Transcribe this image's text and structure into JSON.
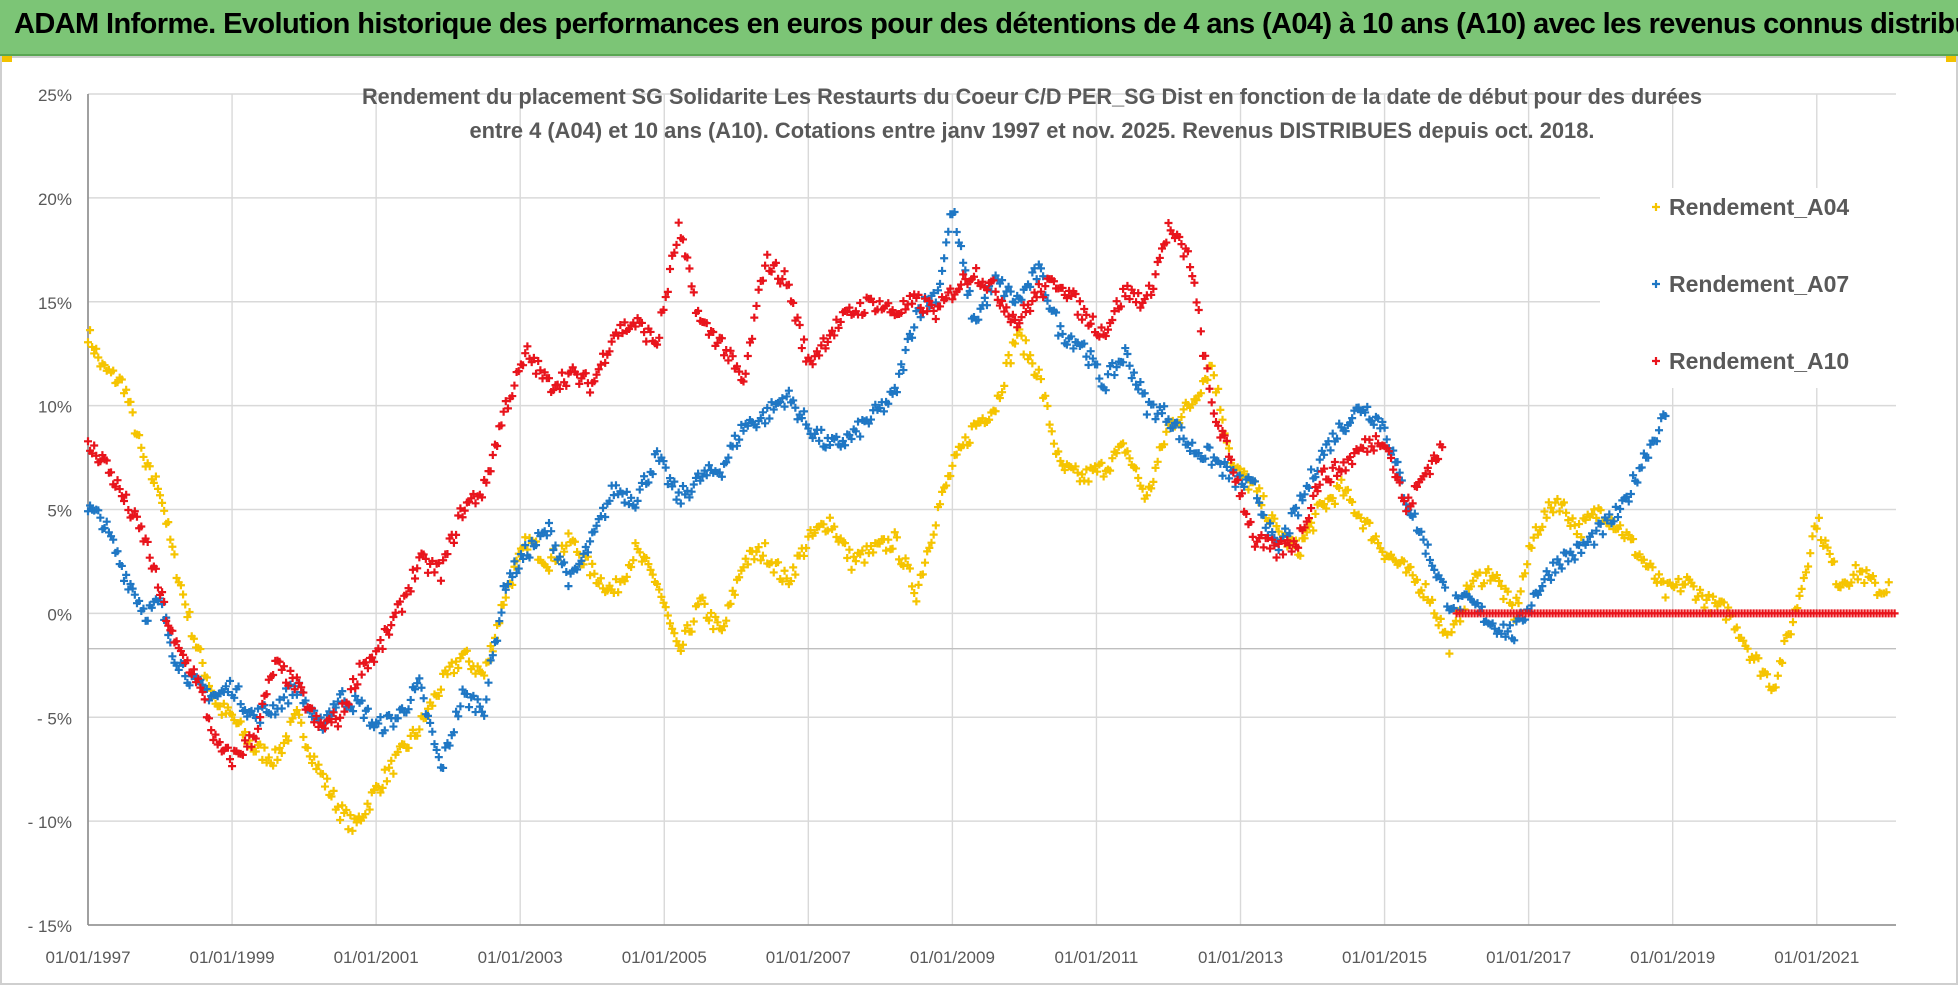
{
  "banner": {
    "title": "ADAM Informe. Evolution historique des performances en euros pour des détentions de 4 ans (A04) à 10 ans (A10) avec les revenus connus distribués"
  },
  "colors": {
    "banner_bg": "#7cc576",
    "a04": "#f5c400",
    "a07": "#1f77c4",
    "a10": "#e8141c",
    "grid": "#d9d9d9"
  },
  "chart_data": {
    "type": "scatter",
    "title_line1": "Rendement du placement SG Solidarite Les Restaurts du Coeur C/D PER_SG Dist en fonction de la date de début pour des durées",
    "title_line2": "entre 4 (A04) et 10 ans (A10).  Cotations entre janv 1997 et nov. 2025. Revenus DISTRIBUES depuis oct. 2018.",
    "xlabel": "",
    "ylabel": "",
    "xlim": [
      1997.0,
      2022.1
    ],
    "ylim": [
      -15,
      25
    ],
    "y_ticks": [
      25,
      20,
      15,
      10,
      5,
      0,
      -5,
      -10,
      -15
    ],
    "y_tick_labels": [
      "25%",
      "20%",
      "15%",
      "10%",
      "5%",
      "0%",
      "- 5%",
      "- 10%",
      "- 15%"
    ],
    "x_ticks": [
      1997,
      1999,
      2001,
      2003,
      2005,
      2007,
      2009,
      2011,
      2013,
      2015,
      2017,
      2019,
      2021
    ],
    "x_tick_labels": [
      "01/01/1997",
      "01/01/1999",
      "01/01/2001",
      "01/01/2003",
      "01/01/2005",
      "01/01/2007",
      "01/01/2009",
      "01/01/2011",
      "01/01/2013",
      "01/01/2015",
      "01/01/2017",
      "01/01/2019",
      "01/01/2021"
    ],
    "grid": true,
    "legend_position": "top-right",
    "series": [
      {
        "name": "Rendement_A04",
        "key": "a04",
        "x": [
          1997.0,
          1997.2,
          1997.5,
          1997.8,
          1998.0,
          1998.2,
          1998.5,
          1998.8,
          1999.0,
          1999.3,
          1999.6,
          1999.9,
          2000.2,
          2000.5,
          2000.7,
          2001.0,
          2001.3,
          2001.6,
          2001.9,
          2002.2,
          2002.5,
          2002.8,
          2003.1,
          2003.4,
          2003.7,
          2004.0,
          2004.3,
          2004.6,
          2004.9,
          2005.2,
          2005.5,
          2005.8,
          2006.1,
          2006.4,
          2006.7,
          2007.0,
          2007.3,
          2007.6,
          2007.9,
          2008.2,
          2008.5,
          2008.8,
          2009.0,
          2009.3,
          2009.6,
          2009.9,
          2010.2,
          2010.5,
          2010.8,
          2011.1,
          2011.4,
          2011.7,
          2012.0,
          2012.3,
          2012.6,
          2012.9,
          2013.2,
          2013.5,
          2013.8,
          2014.1,
          2014.4,
          2014.7,
          2015.0,
          2015.3,
          2015.6,
          2015.9,
          2016.2,
          2016.5,
          2016.8,
          2017.1,
          2017.4,
          2017.7,
          2018.0,
          2018.3,
          2018.6,
          2018.9,
          2019.2,
          2019.5,
          2019.8,
          2020.1,
          2020.4,
          2020.7,
          2021.0,
          2021.3,
          2021.6,
          2021.9,
          2022.0
        ],
        "y": [
          13.5,
          11.8,
          11.0,
          7.0,
          6.0,
          2.5,
          -1.5,
          -4.5,
          -5.0,
          -6.5,
          -7.0,
          -5.0,
          -7.5,
          -9.5,
          -10.3,
          -8.5,
          -7.0,
          -5.5,
          -3.5,
          -2.0,
          -3.0,
          1.0,
          3.5,
          2.5,
          3.5,
          2.0,
          1.0,
          3.0,
          1.5,
          -2.0,
          0.5,
          -1.0,
          2.5,
          3.0,
          1.5,
          3.5,
          4.5,
          2.5,
          3.0,
          3.5,
          1.0,
          5.0,
          7.0,
          9.0,
          10.0,
          13.5,
          11.5,
          7.0,
          6.5,
          7.0,
          8.0,
          5.5,
          9.0,
          10.0,
          12.0,
          7.0,
          6.0,
          4.0,
          3.0,
          5.0,
          6.0,
          4.5,
          3.0,
          2.0,
          1.0,
          -1.5,
          1.5,
          2.0,
          0.0,
          4.0,
          5.5,
          4.0,
          5.0,
          4.0,
          2.5,
          1.0,
          1.5,
          0.5,
          0.0,
          -2.0,
          -3.5,
          0.0,
          4.5,
          1.5,
          2.0,
          1.0,
          1.5
        ]
      },
      {
        "name": "Rendement_A07",
        "key": "a07",
        "x": [
          1997.0,
          1997.2,
          1997.5,
          1997.8,
          1998.0,
          1998.2,
          1998.5,
          1998.8,
          1999.0,
          1999.3,
          1999.6,
          1999.9,
          2000.2,
          2000.5,
          2000.8,
          2001.0,
          2001.3,
          2001.6,
          2001.9,
          2002.2,
          2002.5,
          2002.8,
          2003.1,
          2003.4,
          2003.7,
          2004.0,
          2004.3,
          2004.6,
          2004.9,
          2005.2,
          2005.5,
          2005.8,
          2006.1,
          2006.4,
          2006.7,
          2007.0,
          2007.3,
          2007.6,
          2007.9,
          2008.2,
          2008.5,
          2008.8,
          2009.0,
          2009.3,
          2009.6,
          2009.9,
          2010.2,
          2010.5,
          2010.8,
          2011.1,
          2011.4,
          2011.7,
          2012.0,
          2012.3,
          2012.6,
          2012.9,
          2013.2,
          2013.5,
          2013.8,
          2014.1,
          2014.4,
          2014.7,
          2015.0,
          2015.3,
          2015.6,
          2015.9,
          2016.2,
          2016.5,
          2016.8,
          2017.1,
          2017.4,
          2017.7,
          2018.0,
          2018.3,
          2018.6,
          2018.9
        ],
        "y": [
          5.0,
          4.5,
          2.0,
          0.0,
          0.5,
          -2.0,
          -3.5,
          -4.0,
          -3.5,
          -5.0,
          -4.5,
          -3.5,
          -5.5,
          -4.0,
          -4.5,
          -5.5,
          -5.0,
          -3.5,
          -7.5,
          -4.0,
          -4.5,
          1.5,
          3.0,
          4.0,
          1.5,
          3.5,
          6.0,
          5.5,
          7.5,
          5.5,
          6.5,
          7.0,
          9.0,
          9.5,
          10.5,
          9.0,
          8.0,
          8.5,
          9.5,
          10.5,
          14.5,
          15.5,
          19.5,
          14.0,
          16.0,
          15.0,
          16.5,
          13.5,
          13.0,
          11.0,
          12.5,
          10.0,
          9.5,
          8.0,
          7.5,
          6.5,
          6.0,
          3.0,
          5.0,
          7.5,
          9.0,
          10.0,
          9.0,
          5.5,
          3.0,
          0.5,
          0.5,
          -0.5,
          -1.0,
          1.0,
          2.5,
          3.0,
          4.0,
          5.0,
          7.5,
          9.5
        ]
      },
      {
        "name": "Rendement_A10",
        "key": "a10",
        "x": [
          1997.0,
          1997.2,
          1997.5,
          1997.8,
          1998.0,
          1998.2,
          1998.5,
          1998.8,
          1999.0,
          1999.3,
          1999.6,
          1999.9,
          2000.2,
          2000.5,
          2000.8,
          2001.0,
          2001.3,
          2001.6,
          2001.9,
          2002.2,
          2002.5,
          2002.8,
          2003.1,
          2003.4,
          2003.7,
          2004.0,
          2004.3,
          2004.6,
          2004.9,
          2005.2,
          2005.5,
          2005.8,
          2006.1,
          2006.4,
          2006.7,
          2007.0,
          2007.3,
          2007.6,
          2007.9,
          2008.2,
          2008.5,
          2008.8,
          2009.0,
          2009.3,
          2009.6,
          2009.9,
          2010.2,
          2010.5,
          2010.8,
          2011.1,
          2011.4,
          2011.7,
          2012.0,
          2012.3,
          2012.6,
          2012.9,
          2013.2,
          2013.5,
          2013.8,
          2014.1,
          2014.4,
          2014.7,
          2015.0,
          2015.3,
          2015.6,
          2015.8
        ],
        "y": [
          8.0,
          7.5,
          5.5,
          3.5,
          1.0,
          -1.5,
          -3.0,
          -6.5,
          -7.0,
          -6.0,
          -2.5,
          -3.5,
          -5.5,
          -5.0,
          -2.5,
          -2.0,
          0.0,
          2.5,
          2.0,
          5.0,
          6.0,
          10.0,
          12.5,
          11.0,
          11.5,
          11.0,
          13.5,
          14.0,
          13.0,
          18.5,
          14.0,
          13.0,
          11.0,
          17.0,
          16.0,
          12.0,
          13.5,
          14.5,
          15.0,
          14.5,
          15.0,
          14.5,
          15.5,
          16.5,
          15.5,
          14.0,
          15.5,
          16.0,
          14.5,
          13.5,
          15.5,
          15.0,
          18.5,
          17.0,
          10.0,
          7.0,
          3.5,
          3.0,
          3.5,
          6.5,
          7.0,
          8.0,
          8.5,
          5.0,
          7.0,
          8.0
        ]
      },
      {
        "name": "Rendement_A10_zero",
        "key": "a10",
        "x_from": 2016.0,
        "x_to": 2022.1,
        "y_value": 0.0
      }
    ],
    "legend": [
      {
        "label": "Rendement_A04",
        "key": "a04"
      },
      {
        "label": "Rendement_A07",
        "key": "a07"
      },
      {
        "label": "Rendement_A10",
        "key": "a10"
      }
    ]
  }
}
